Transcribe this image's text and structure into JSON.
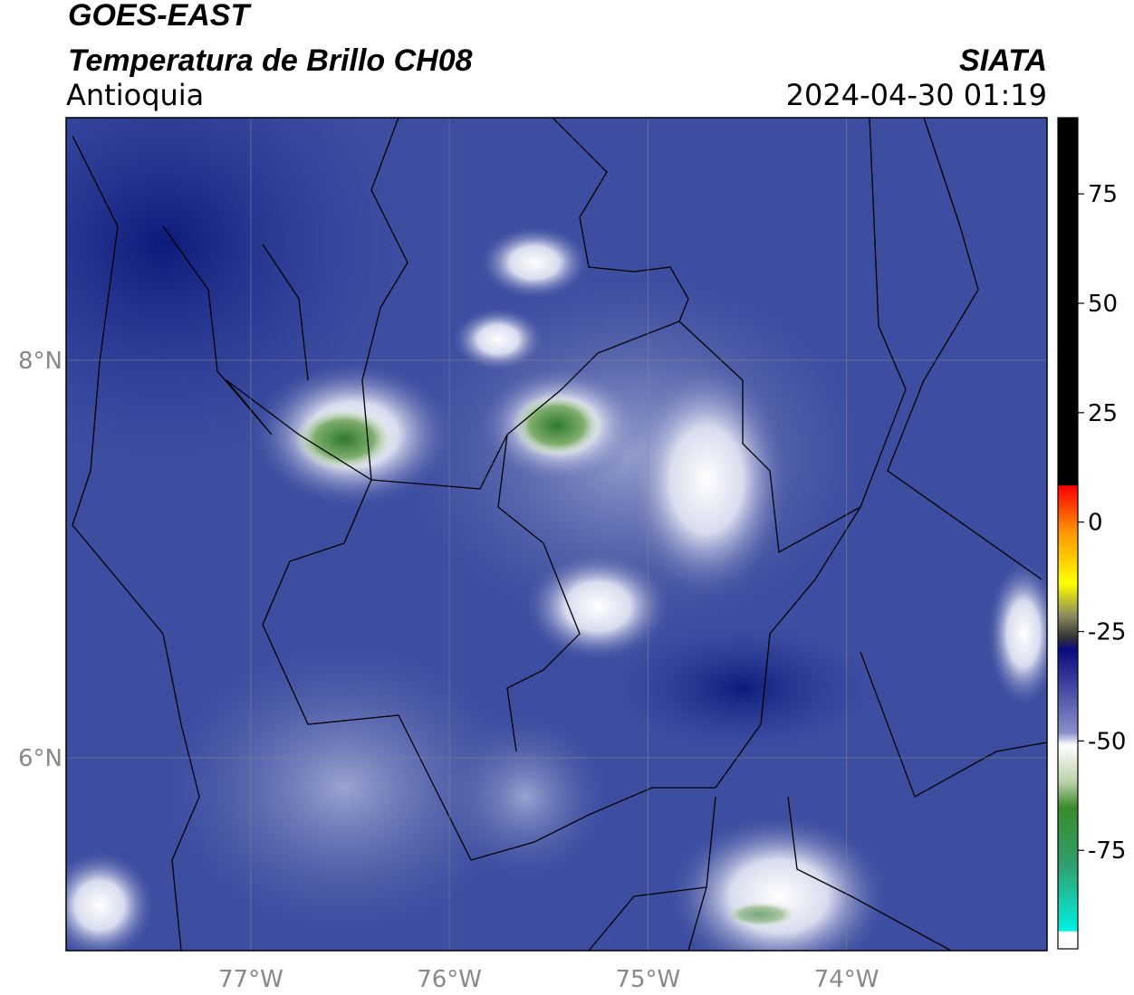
{
  "header": {
    "title": "GOES-EAST",
    "subtitle": "Temperatura de Brillo CH08",
    "region": "Antioquia",
    "source": "SIATA",
    "datetime": "2024-04-30 01:19"
  },
  "map": {
    "xlim": [
      -77.93,
      -72.99
    ],
    "ylim": [
      5.03,
      9.22
    ],
    "xticks": [
      {
        "value": -77,
        "label": "77°W"
      },
      {
        "value": -76,
        "label": "76°W"
      },
      {
        "value": -75,
        "label": "75°W"
      },
      {
        "value": -74,
        "label": "74°W"
      }
    ],
    "yticks": [
      {
        "value": 8,
        "label": "8°N"
      },
      {
        "value": 6,
        "label": "6°N"
      }
    ]
  },
  "colorbar": {
    "lim": [
      -97.5,
      92.4
    ],
    "ticks": [
      75,
      50,
      25,
      0,
      -25,
      -50,
      -75
    ]
  }
}
